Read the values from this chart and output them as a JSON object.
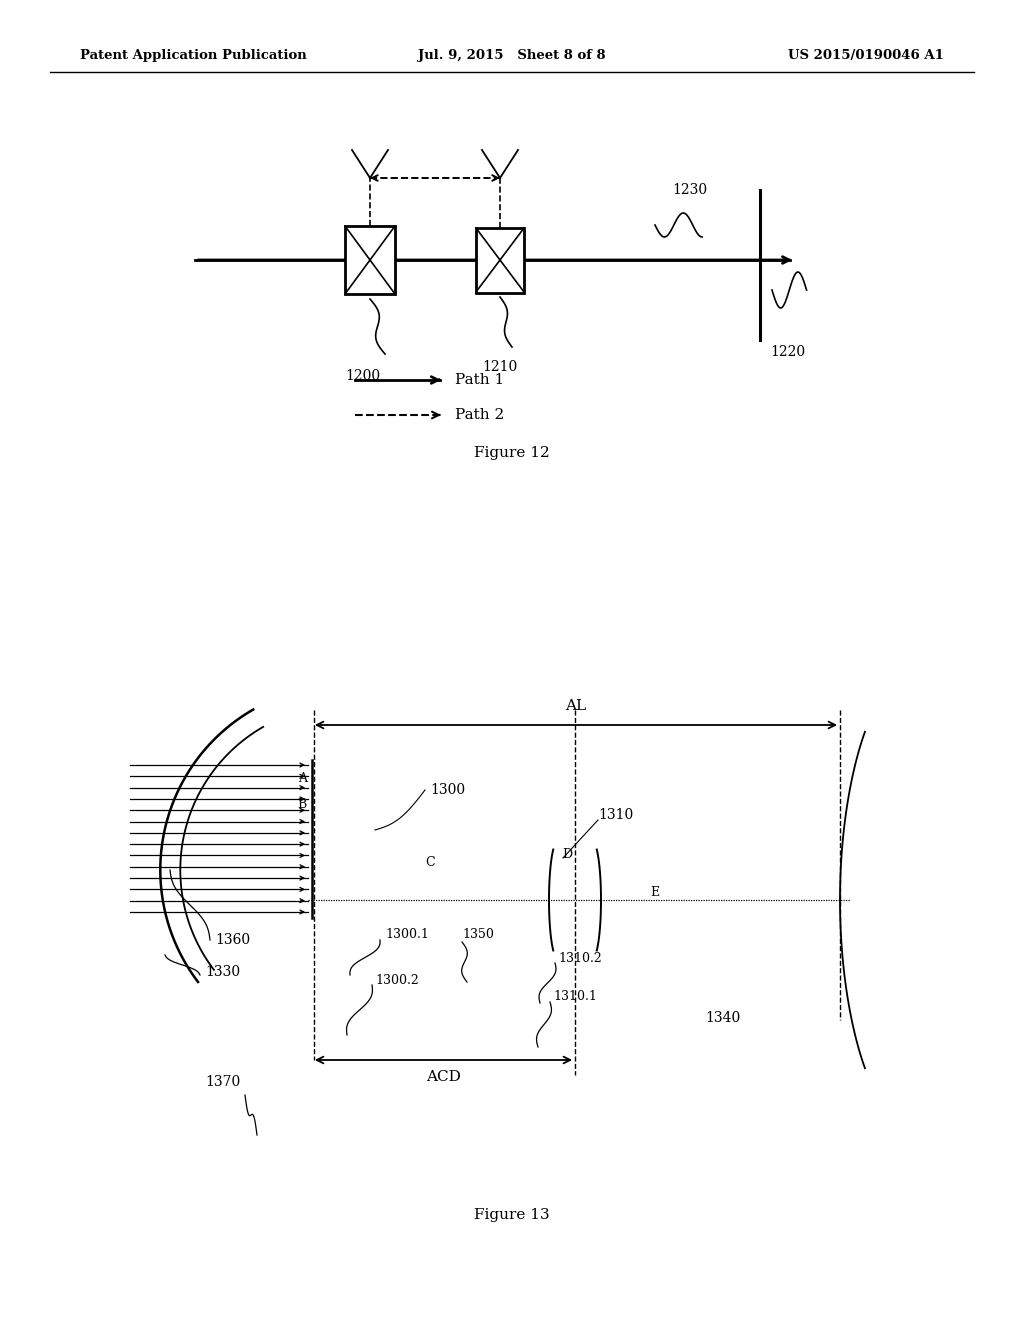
{
  "bg_color": "#ffffff",
  "header_left": "Patent Application Publication",
  "header_mid": "Jul. 9, 2015   Sheet 8 of 8",
  "header_right": "US 2015/0190046 A1",
  "fig12_caption": "Figure 12",
  "fig13_caption": "Figure 13",
  "legend_path1": "Path 1",
  "legend_path2": "Path 2"
}
